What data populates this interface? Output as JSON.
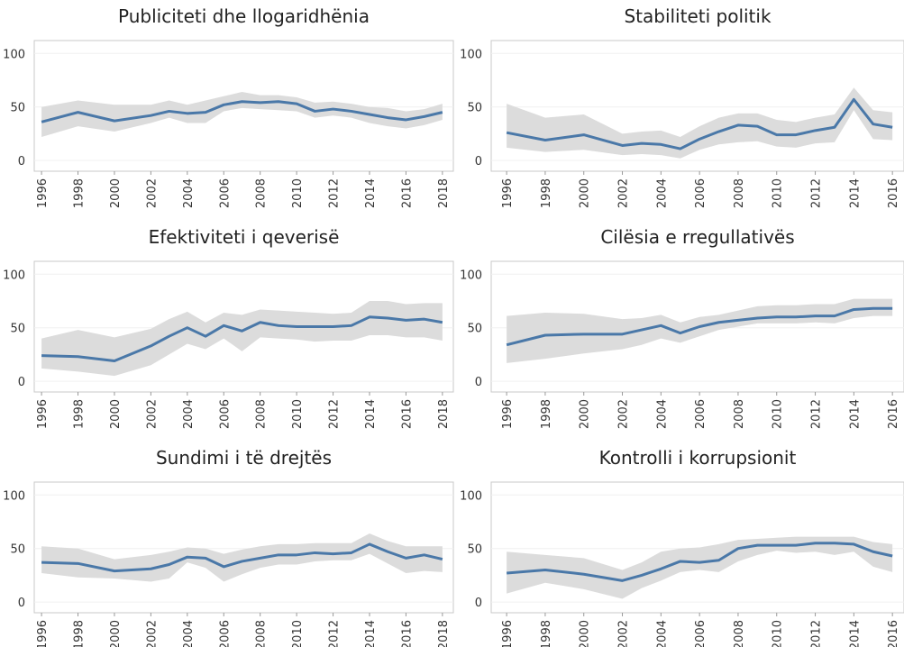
{
  "chart_data": [
    {
      "type": "line",
      "title": "Publiciteti dhe llogaridhënia",
      "x": [
        1996,
        1998,
        2000,
        2002,
        2003,
        2004,
        2005,
        2006,
        2007,
        2008,
        2009,
        2010,
        2011,
        2012,
        2013,
        2014,
        2015,
        2016,
        2017,
        2018
      ],
      "values": [
        36,
        45,
        37,
        42,
        46,
        44,
        45,
        52,
        55,
        54,
        55,
        53,
        46,
        48,
        46,
        43,
        40,
        38,
        41,
        45
      ],
      "lower": [
        22,
        32,
        27,
        35,
        40,
        35,
        35,
        46,
        49,
        48,
        47,
        46,
        40,
        42,
        40,
        35,
        32,
        30,
        33,
        38
      ],
      "upper": [
        50,
        56,
        52,
        52,
        56,
        52,
        56,
        60,
        64,
        61,
        61,
        59,
        54,
        55,
        53,
        50,
        49,
        46,
        48,
        53
      ],
      "color": "#4a78a8",
      "band_color": "#dcdcdc",
      "xlim": [
        1995.6,
        2018.6
      ],
      "xticks": [
        1996,
        1998,
        2000,
        2002,
        2004,
        2006,
        2008,
        2010,
        2012,
        2014,
        2016,
        2018
      ],
      "ylim": [
        -10,
        112
      ],
      "yticks": [
        0,
        50,
        100
      ]
    },
    {
      "type": "line",
      "title": "Stabiliteti politik",
      "x": [
        1996,
        1998,
        2000,
        2002,
        2003,
        2004,
        2005,
        2006,
        2007,
        2008,
        2009,
        2010,
        2011,
        2012,
        2013,
        2014,
        2015,
        2016
      ],
      "values": [
        26,
        19,
        24,
        14,
        16,
        15,
        11,
        20,
        27,
        33,
        32,
        24,
        24,
        28,
        31,
        57,
        34,
        31
      ],
      "lower": [
        12,
        8,
        10,
        5,
        6,
        5,
        2,
        10,
        15,
        17,
        18,
        13,
        12,
        16,
        17,
        47,
        20,
        19
      ],
      "upper": [
        53,
        40,
        43,
        25,
        27,
        28,
        22,
        32,
        40,
        44,
        44,
        38,
        36,
        40,
        43,
        68,
        47,
        45
      ],
      "color": "#4a78a8",
      "band_color": "#dcdcdc",
      "xlim": [
        1995.2,
        2016.6
      ],
      "xticks": [
        1996,
        1998,
        2000,
        2002,
        2004,
        2006,
        2008,
        2010,
        2012,
        2014,
        2016
      ],
      "ylim": [
        -10,
        112
      ],
      "yticks": [
        0,
        50,
        100
      ]
    },
    {
      "type": "line",
      "title": "Efektiviteti i qeverisë",
      "x": [
        1996,
        1998,
        2000,
        2002,
        2003,
        2004,
        2005,
        2006,
        2007,
        2008,
        2009,
        2010,
        2011,
        2012,
        2013,
        2014,
        2015,
        2016,
        2017,
        2018
      ],
      "values": [
        24,
        23,
        19,
        33,
        42,
        50,
        42,
        52,
        47,
        55,
        52,
        51,
        51,
        51,
        52,
        60,
        59,
        57,
        58,
        55
      ],
      "lower": [
        12,
        9,
        5,
        15,
        25,
        35,
        30,
        40,
        28,
        41,
        40,
        39,
        37,
        38,
        38,
        43,
        43,
        41,
        41,
        38
      ],
      "upper": [
        40,
        48,
        41,
        49,
        58,
        65,
        55,
        64,
        62,
        67,
        66,
        65,
        64,
        63,
        64,
        75,
        75,
        72,
        73,
        73
      ],
      "color": "#4a78a8",
      "band_color": "#dcdcdc",
      "xlim": [
        1995.6,
        2018.6
      ],
      "xticks": [
        1996,
        1998,
        2000,
        2002,
        2004,
        2006,
        2008,
        2010,
        2012,
        2014,
        2016,
        2018
      ],
      "ylim": [
        -10,
        112
      ],
      "yticks": [
        0,
        50,
        100
      ]
    },
    {
      "type": "line",
      "title": "Cilësia e rregullativës",
      "x": [
        1996,
        1998,
        2000,
        2002,
        2003,
        2004,
        2005,
        2006,
        2007,
        2008,
        2009,
        2010,
        2011,
        2012,
        2013,
        2014,
        2015,
        2016
      ],
      "values": [
        34,
        43,
        44,
        44,
        48,
        52,
        45,
        51,
        55,
        57,
        59,
        60,
        60,
        61,
        61,
        67,
        68,
        68
      ],
      "lower": [
        17,
        21,
        26,
        30,
        34,
        40,
        36,
        42,
        48,
        51,
        54,
        54,
        54,
        55,
        54,
        59,
        61,
        61
      ],
      "upper": [
        61,
        64,
        63,
        58,
        59,
        62,
        55,
        60,
        62,
        66,
        70,
        71,
        71,
        72,
        72,
        77,
        77,
        77
      ],
      "color": "#4a78a8",
      "band_color": "#dcdcdc",
      "xlim": [
        1995.2,
        2016.6
      ],
      "xticks": [
        1996,
        1998,
        2000,
        2002,
        2004,
        2006,
        2008,
        2010,
        2012,
        2014,
        2016
      ],
      "ylim": [
        -10,
        112
      ],
      "yticks": [
        0,
        50,
        100
      ]
    },
    {
      "type": "line",
      "title": "Sundimi i të drejtës",
      "x": [
        1996,
        1998,
        2000,
        2002,
        2003,
        2004,
        2005,
        2006,
        2007,
        2008,
        2009,
        2010,
        2011,
        2012,
        2013,
        2014,
        2015,
        2016,
        2017,
        2018
      ],
      "values": [
        37,
        36,
        29,
        31,
        35,
        42,
        41,
        33,
        38,
        41,
        44,
        44,
        46,
        45,
        46,
        54,
        47,
        41,
        44,
        40
      ],
      "lower": [
        27,
        23,
        22,
        19,
        22,
        37,
        32,
        19,
        26,
        32,
        35,
        35,
        38,
        39,
        39,
        45,
        36,
        27,
        29,
        28
      ],
      "upper": [
        52,
        50,
        40,
        44,
        47,
        51,
        50,
        45,
        49,
        52,
        54,
        54,
        55,
        55,
        55,
        64,
        57,
        52,
        52,
        52
      ],
      "color": "#4a78a8",
      "band_color": "#dcdcdc",
      "xlim": [
        1995.6,
        2018.6
      ],
      "xticks": [
        1996,
        1998,
        2000,
        2002,
        2004,
        2006,
        2008,
        2010,
        2012,
        2014,
        2016,
        2018
      ],
      "ylim": [
        -10,
        112
      ],
      "yticks": [
        0,
        50,
        100
      ]
    },
    {
      "type": "line",
      "title": "Kontrolli i korrupsionit",
      "x": [
        1996,
        1998,
        2000,
        2002,
        2003,
        2004,
        2005,
        2006,
        2007,
        2008,
        2009,
        2010,
        2011,
        2012,
        2013,
        2014,
        2015,
        2016
      ],
      "values": [
        27,
        30,
        26,
        20,
        25,
        31,
        38,
        37,
        39,
        50,
        53,
        53,
        53,
        55,
        55,
        54,
        47,
        43
      ],
      "lower": [
        8,
        18,
        12,
        3,
        13,
        20,
        28,
        30,
        28,
        38,
        44,
        48,
        46,
        47,
        44,
        47,
        33,
        28
      ],
      "upper": [
        47,
        44,
        41,
        30,
        37,
        47,
        50,
        51,
        54,
        58,
        59,
        60,
        61,
        61,
        61,
        61,
        56,
        54
      ],
      "color": "#4a78a8",
      "band_color": "#dcdcdc",
      "xlim": [
        1995.2,
        2016.6
      ],
      "xticks": [
        1996,
        1998,
        2000,
        2002,
        2004,
        2006,
        2008,
        2010,
        2012,
        2014,
        2016
      ],
      "ylim": [
        -10,
        112
      ],
      "yticks": [
        0,
        50,
        100
      ]
    }
  ]
}
